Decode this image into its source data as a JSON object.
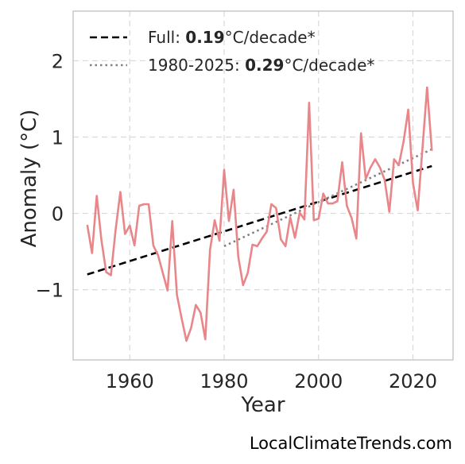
{
  "chart_data": {
    "type": "line",
    "xlabel": "Year",
    "ylabel": "Anomaly (°C)",
    "xlim": [
      1948,
      2028.5
    ],
    "ylim": [
      -1.92,
      2.65
    ],
    "xticks": [
      1960,
      1980,
      2000,
      2020
    ],
    "xtick_labels": [
      "1960",
      "1980",
      "2000",
      "2020"
    ],
    "yticks": [
      -1,
      0,
      1,
      2
    ],
    "ytick_labels": [
      "−1",
      "0",
      "1",
      "2"
    ],
    "grid": true,
    "legend_position": "top-left",
    "colors": {
      "series": "#e8868a",
      "full_trend": "#000000",
      "recent_trend": "#808080",
      "grid": "#d9d9d9",
      "frame": "#c8c8c8"
    },
    "series": [
      {
        "x": [
          1951,
          1952,
          1953,
          1954,
          1955,
          1956,
          1957,
          1958,
          1959,
          1960,
          1961,
          1962,
          1963,
          1964,
          1965,
          1966,
          1967,
          1968,
          1969,
          1970,
          1971,
          1972,
          1973,
          1974,
          1975,
          1976,
          1977,
          1978,
          1979,
          1980,
          1981,
          1982,
          1983,
          1984,
          1985,
          1986,
          1987,
          1988,
          1989,
          1990,
          1991,
          1992,
          1993,
          1994,
          1995,
          1996,
          1997,
          1998,
          1999,
          2000,
          2001,
          2002,
          2003,
          2004,
          2005,
          2006,
          2007,
          2008,
          2009,
          2010,
          2011,
          2012,
          2013,
          2014,
          2015,
          2016,
          2017,
          2018,
          2019,
          2020,
          2021,
          2022,
          2023,
          2024
        ],
        "values": [
          -0.15,
          -0.52,
          0.23,
          -0.35,
          -0.77,
          -0.81,
          -0.22,
          0.28,
          -0.27,
          -0.16,
          -0.42,
          0.1,
          0.12,
          0.12,
          -0.42,
          -0.55,
          -0.78,
          -1.01,
          -0.1,
          -1.07,
          -1.38,
          -1.67,
          -1.5,
          -1.2,
          -1.3,
          -1.65,
          -0.48,
          -0.09,
          -0.36,
          0.57,
          -0.1,
          0.31,
          -0.57,
          -0.94,
          -0.78,
          -0.41,
          -0.43,
          -0.33,
          -0.24,
          0.12,
          0.07,
          -0.34,
          -0.43,
          -0.05,
          -0.32,
          0.01,
          -0.08,
          1.45,
          -0.09,
          -0.07,
          0.26,
          0.13,
          0.13,
          0.16,
          0.67,
          0.1,
          -0.06,
          -0.33,
          1.05,
          0.45,
          0.6,
          0.71,
          0.6,
          0.44,
          0.02,
          0.71,
          0.63,
          0.94,
          1.36,
          0.4,
          0.04,
          0.84,
          1.65,
          0.82
        ]
      }
    ],
    "trend_lines": [
      {
        "label": "full",
        "x": [
          1951,
          2024
        ],
        "values": [
          -0.8,
          0.62
        ]
      },
      {
        "label": "1980-2025",
        "x": [
          1980,
          2024
        ],
        "values": [
          -0.43,
          0.84
        ]
      }
    ],
    "legend": [
      {
        "style": "dashed",
        "prefix": "Full: ",
        "value": "0.19",
        "suffix": "°C/decade*"
      },
      {
        "style": "dotted",
        "prefix": "1980-2025: ",
        "value": "0.29",
        "suffix": "°C/decade*"
      }
    ]
  },
  "watermark": "LocalClimateTrends.com"
}
